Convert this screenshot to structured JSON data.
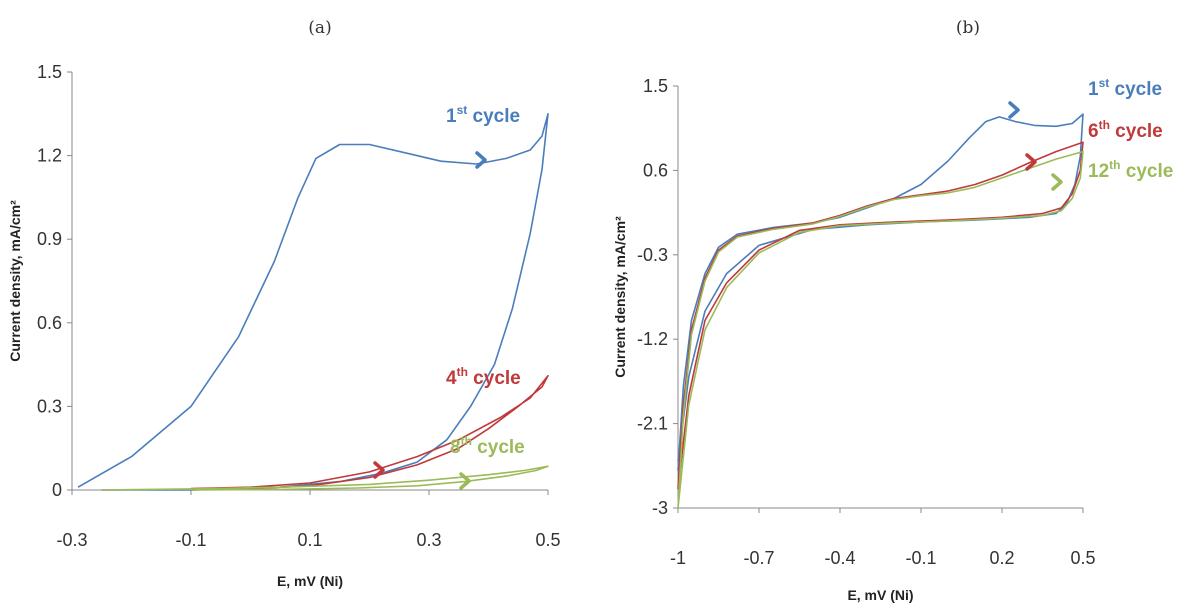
{
  "chart_data": [
    {
      "type": "line",
      "panel_label": "(a)",
      "xlabel": "E, mV (Ni)",
      "ylabel": "Current density, mA/cm²",
      "xlim": [
        -0.3,
        0.5
      ],
      "ylim": [
        0,
        1.5
      ],
      "x_ticks": [
        "-0.3",
        "-0.1",
        "0.1",
        "0.3",
        "0.5"
      ],
      "y_ticks": [
        "0",
        "0.3",
        "0.6",
        "0.9",
        "1.2",
        "1.5"
      ],
      "grid": false,
      "series": [
        {
          "label_sup": "st",
          "label_main": "1",
          "label_rest": " cycle",
          "color": "#4a7ebb",
          "points": [
            [
              -0.29,
              0.01
            ],
            [
              -0.2,
              0.12
            ],
            [
              -0.1,
              0.3
            ],
            [
              -0.02,
              0.55
            ],
            [
              0.04,
              0.82
            ],
            [
              0.08,
              1.05
            ],
            [
              0.11,
              1.19
            ],
            [
              0.15,
              1.24
            ],
            [
              0.2,
              1.24
            ],
            [
              0.26,
              1.21
            ],
            [
              0.32,
              1.18
            ],
            [
              0.38,
              1.17
            ],
            [
              0.43,
              1.19
            ],
            [
              0.47,
              1.22
            ],
            [
              0.49,
              1.27
            ],
            [
              0.5,
              1.35
            ],
            [
              0.49,
              1.15
            ],
            [
              0.47,
              0.92
            ],
            [
              0.44,
              0.65
            ],
            [
              0.41,
              0.45
            ],
            [
              0.37,
              0.3
            ],
            [
              0.33,
              0.18
            ],
            [
              0.28,
              0.1
            ],
            [
              0.22,
              0.06
            ],
            [
              0.15,
              0.03
            ],
            [
              0.05,
              0.01
            ],
            [
              -0.1,
              0.0
            ],
            [
              -0.25,
              0.0
            ]
          ]
        },
        {
          "label_sup": "th",
          "label_main": "4",
          "label_rest": " cycle",
          "color": "#c0393b",
          "points": [
            [
              -0.1,
              0.005
            ],
            [
              0.0,
              0.01
            ],
            [
              0.1,
              0.025
            ],
            [
              0.2,
              0.065
            ],
            [
              0.28,
              0.12
            ],
            [
              0.35,
              0.18
            ],
            [
              0.42,
              0.26
            ],
            [
              0.47,
              0.33
            ],
            [
              0.5,
              0.41
            ],
            [
              0.49,
              0.37
            ],
            [
              0.45,
              0.3
            ],
            [
              0.4,
              0.22
            ],
            [
              0.35,
              0.15
            ],
            [
              0.28,
              0.09
            ],
            [
              0.2,
              0.045
            ],
            [
              0.1,
              0.015
            ],
            [
              0.0,
              0.005
            ],
            [
              -0.1,
              0.0
            ]
          ]
        },
        {
          "label_sup": "th",
          "label_main": "8",
          "label_rest": " cycle",
          "color": "#9bbb59",
          "points": [
            [
              -0.25,
              0.0
            ],
            [
              -0.1,
              0.004
            ],
            [
              0.05,
              0.01
            ],
            [
              0.2,
              0.02
            ],
            [
              0.3,
              0.035
            ],
            [
              0.4,
              0.055
            ],
            [
              0.46,
              0.07
            ],
            [
              0.5,
              0.085
            ],
            [
              0.48,
              0.07
            ],
            [
              0.43,
              0.05
            ],
            [
              0.36,
              0.03
            ],
            [
              0.28,
              0.015
            ],
            [
              0.18,
              0.007
            ],
            [
              0.05,
              0.002
            ],
            [
              -0.1,
              0.0
            ]
          ]
        }
      ]
    },
    {
      "type": "line",
      "panel_label": "(b)",
      "xlabel": "E, mV (Ni)",
      "ylabel": "Current density, mA/cm²",
      "xlim": [
        -1,
        0.5
      ],
      "ylim": [
        -3,
        1.5
      ],
      "x_ticks": [
        "-1",
        "-0.7",
        "-0.4",
        "-0.1",
        "0.2",
        "0.5"
      ],
      "y_ticks": [
        "-3",
        "-2.1",
        "-1.2",
        "-0.3",
        "0.6",
        "1.5"
      ],
      "grid": false,
      "series": [
        {
          "label_sup": "st",
          "label_main": "1",
          "label_rest": " cycle",
          "color": "#4a7ebb",
          "points": [
            [
              -1.0,
              -2.6
            ],
            [
              -0.98,
              -1.7
            ],
            [
              -0.95,
              -1.0
            ],
            [
              -0.9,
              -0.5
            ],
            [
              -0.85,
              -0.22
            ],
            [
              -0.78,
              -0.08
            ],
            [
              -0.65,
              -0.01
            ],
            [
              -0.5,
              0.04
            ],
            [
              -0.4,
              0.1
            ],
            [
              -0.3,
              0.2
            ],
            [
              -0.2,
              0.3
            ],
            [
              -0.1,
              0.45
            ],
            [
              0.0,
              0.7
            ],
            [
              0.08,
              0.95
            ],
            [
              0.14,
              1.12
            ],
            [
              0.19,
              1.17
            ],
            [
              0.25,
              1.12
            ],
            [
              0.32,
              1.08
            ],
            [
              0.4,
              1.07
            ],
            [
              0.46,
              1.1
            ],
            [
              0.5,
              1.2
            ],
            [
              0.49,
              0.75
            ],
            [
              0.47,
              0.45
            ],
            [
              0.44,
              0.25
            ],
            [
              0.4,
              0.14
            ],
            [
              0.3,
              0.1
            ],
            [
              0.1,
              0.07
            ],
            [
              -0.1,
              0.05
            ],
            [
              -0.3,
              0.02
            ],
            [
              -0.5,
              -0.03
            ],
            [
              -0.7,
              -0.2
            ],
            [
              -0.82,
              -0.5
            ],
            [
              -0.9,
              -0.9
            ],
            [
              -0.96,
              -1.6
            ],
            [
              -1.0,
              -2.5
            ]
          ]
        },
        {
          "label_sup": "th",
          "label_main": "6",
          "label_rest": " cycle",
          "color": "#c0393b",
          "points": [
            [
              -1.0,
              -2.8
            ],
            [
              -0.98,
              -1.9
            ],
            [
              -0.95,
              -1.1
            ],
            [
              -0.9,
              -0.55
            ],
            [
              -0.85,
              -0.25
            ],
            [
              -0.78,
              -0.1
            ],
            [
              -0.65,
              -0.02
            ],
            [
              -0.5,
              0.04
            ],
            [
              -0.4,
              0.12
            ],
            [
              -0.3,
              0.22
            ],
            [
              -0.2,
              0.3
            ],
            [
              -0.1,
              0.34
            ],
            [
              0.0,
              0.38
            ],
            [
              0.1,
              0.45
            ],
            [
              0.2,
              0.55
            ],
            [
              0.3,
              0.68
            ],
            [
              0.4,
              0.8
            ],
            [
              0.5,
              0.9
            ],
            [
              0.49,
              0.6
            ],
            [
              0.46,
              0.35
            ],
            [
              0.42,
              0.2
            ],
            [
              0.35,
              0.14
            ],
            [
              0.2,
              0.1
            ],
            [
              0.0,
              0.07
            ],
            [
              -0.2,
              0.05
            ],
            [
              -0.4,
              0.02
            ],
            [
              -0.55,
              -0.04
            ],
            [
              -0.7,
              -0.25
            ],
            [
              -0.82,
              -0.6
            ],
            [
              -0.9,
              -1.0
            ],
            [
              -0.96,
              -1.8
            ],
            [
              -1.0,
              -2.8
            ]
          ]
        },
        {
          "label_sup": "th",
          "label_main": "12",
          "label_rest": " cycle",
          "color": "#9bbb59",
          "points": [
            [
              -1.0,
              -3.0
            ],
            [
              -0.98,
              -2.0
            ],
            [
              -0.95,
              -1.15
            ],
            [
              -0.9,
              -0.58
            ],
            [
              -0.85,
              -0.27
            ],
            [
              -0.78,
              -0.11
            ],
            [
              -0.65,
              -0.03
            ],
            [
              -0.5,
              0.03
            ],
            [
              -0.4,
              0.11
            ],
            [
              -0.3,
              0.21
            ],
            [
              -0.2,
              0.29
            ],
            [
              -0.1,
              0.33
            ],
            [
              0.0,
              0.36
            ],
            [
              0.1,
              0.42
            ],
            [
              0.2,
              0.52
            ],
            [
              0.3,
              0.62
            ],
            [
              0.4,
              0.72
            ],
            [
              0.5,
              0.8
            ],
            [
              0.49,
              0.52
            ],
            [
              0.46,
              0.3
            ],
            [
              0.42,
              0.17
            ],
            [
              0.35,
              0.12
            ],
            [
              0.2,
              0.09
            ],
            [
              0.0,
              0.06
            ],
            [
              -0.2,
              0.04
            ],
            [
              -0.4,
              0.01
            ],
            [
              -0.55,
              -0.06
            ],
            [
              -0.7,
              -0.28
            ],
            [
              -0.82,
              -0.65
            ],
            [
              -0.9,
              -1.1
            ],
            [
              -0.96,
              -1.9
            ],
            [
              -1.0,
              -3.0
            ]
          ]
        }
      ]
    }
  ]
}
